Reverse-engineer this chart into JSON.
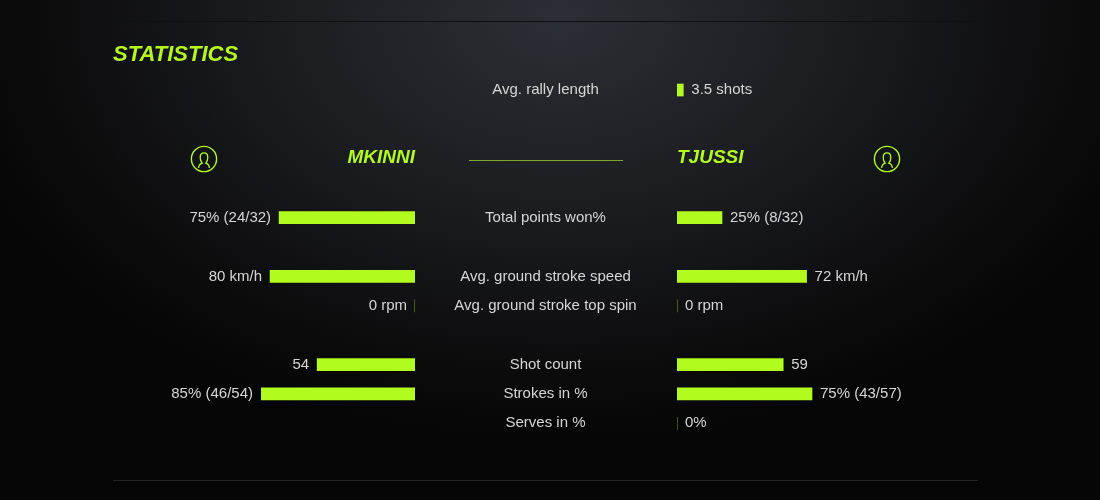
{
  "chart_data": [
    {
      "type": "bar",
      "orientation": "horizontal",
      "tick_labels": "y",
      "categories": [
        "Avg. rally length"
      ],
      "series": [
        {
          "color": "#b2fb1e",
          "values": [
            3.5
          ],
          "value_labels": [
            "3.5 shots"
          ]
        }
      ]
    },
    {
      "type": "bar",
      "title": "STATISTICS",
      "orientation": "horizontal",
      "tick_labels": false,
      "categories": [
        "Total points won%",
        null,
        "Avg. ground stroke speed",
        "Avg. ground stroke top spin",
        null,
        "Shot count",
        "Strokes in %",
        "Serves in %"
      ],
      "series": [
        {
          "name": "MKINNI",
          "color": "#b2fb1e",
          "values": [
            75,
            null,
            80,
            0,
            null,
            54,
            85,
            null
          ],
          "value_labels": [
            "75% (24/32)",
            null,
            "80 km/h",
            "0 rpm",
            null,
            "54",
            "85% (46/54)",
            null
          ]
        }
      ]
    },
    {
      "type": "bar",
      "orientation": "horizontal",
      "tick_labels": "y",
      "categories": [
        "Total points won%",
        null,
        "Avg. ground stroke speed",
        "Avg. ground stroke top spin",
        null,
        "Shot count",
        "Strokes in %",
        "Serves in %"
      ],
      "series": [
        {
          "name": "TJUSSI",
          "color": "#b2fb1e",
          "values": [
            25,
            null,
            72,
            0,
            null,
            59,
            75,
            0
          ],
          "value_labels": [
            "25% (8/32)",
            null,
            "72 km/h",
            "0 rpm",
            null,
            "59",
            "75% (43/57)",
            "0%"
          ]
        }
      ]
    }
  ]
}
